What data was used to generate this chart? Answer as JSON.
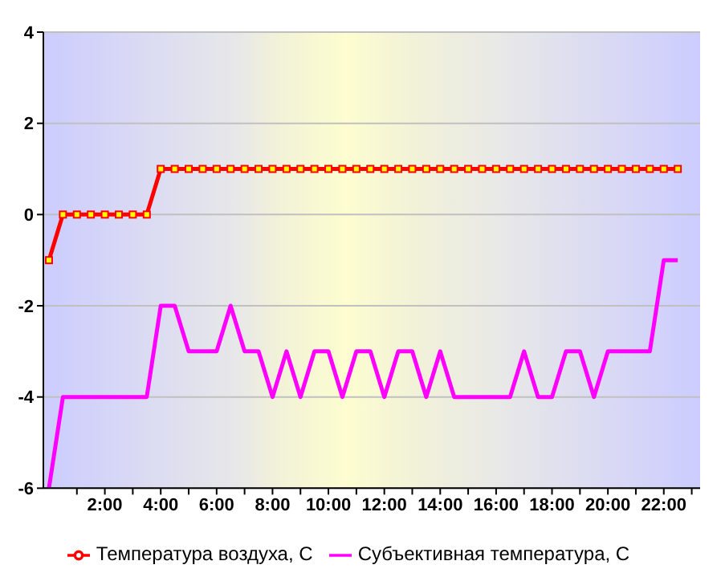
{
  "chart_data": {
    "type": "line",
    "x": [
      0,
      0.5,
      1,
      1.5,
      2,
      2.5,
      3,
      3.5,
      4,
      4.5,
      5,
      5.5,
      6,
      6.5,
      7,
      7.5,
      8,
      8.5,
      9,
      9.5,
      10,
      10.5,
      11,
      11.5,
      12,
      12.5,
      13,
      13.5,
      14,
      14.5,
      15,
      15.5,
      16,
      16.5,
      17,
      17.5,
      18,
      18.5,
      19,
      19.5,
      20,
      20.5,
      21,
      21.5,
      22,
      22.5
    ],
    "series": [
      {
        "name": "Температура воздуха, С",
        "color": "#ff0000",
        "marker": "square",
        "values": [
          -1,
          0,
          0,
          0,
          0,
          0,
          0,
          0,
          1,
          1,
          1,
          1,
          1,
          1,
          1,
          1,
          1,
          1,
          1,
          1,
          1,
          1,
          1,
          1,
          1,
          1,
          1,
          1,
          1,
          1,
          1,
          1,
          1,
          1,
          1,
          1,
          1,
          1,
          1,
          1,
          1,
          1,
          1,
          1,
          1,
          1
        ]
      },
      {
        "name": "Субъективная температура, С",
        "color": "#ff00ff",
        "marker": "none",
        "values": [
          -6,
          -4,
          -4,
          -4,
          -4,
          -4,
          -4,
          -4,
          -2,
          -2,
          -3,
          -3,
          -3,
          -2,
          -3,
          -3,
          -4,
          -3,
          -4,
          -3,
          -3,
          -4,
          -3,
          -3,
          -4,
          -3,
          -3,
          -4,
          -3,
          -4,
          -4,
          -4,
          -4,
          -4,
          -3,
          -4,
          -4,
          -3,
          -3,
          -4,
          -3,
          -3,
          -3,
          -3,
          -1,
          -1
        ]
      }
    ],
    "xlim": [
      -0.2,
      23.3
    ],
    "xticks": [
      {
        "value": 1,
        "label": null
      },
      {
        "value": 2,
        "label": "2:00"
      },
      {
        "value": 3,
        "label": null
      },
      {
        "value": 4,
        "label": "4:00"
      },
      {
        "value": 5,
        "label": null
      },
      {
        "value": 6,
        "label": "6:00"
      },
      {
        "value": 7,
        "label": null
      },
      {
        "value": 8,
        "label": "8:00"
      },
      {
        "value": 9,
        "label": null
      },
      {
        "value": 10,
        "label": "10:00"
      },
      {
        "value": 11,
        "label": null
      },
      {
        "value": 12,
        "label": "12:00"
      },
      {
        "value": 13,
        "label": null
      },
      {
        "value": 14,
        "label": "14:00"
      },
      {
        "value": 15,
        "label": null
      },
      {
        "value": 16,
        "label": "16:00"
      },
      {
        "value": 17,
        "label": null
      },
      {
        "value": 18,
        "label": "18:00"
      },
      {
        "value": 19,
        "label": null
      },
      {
        "value": 20,
        "label": "20:00"
      },
      {
        "value": 21,
        "label": null
      },
      {
        "value": 22,
        "label": "22:00"
      },
      {
        "value": 23,
        "label": null
      }
    ],
    "ylim": [
      -6,
      4
    ],
    "yticks": [
      -6,
      -4,
      -2,
      0,
      2,
      4
    ],
    "grid": "y",
    "legend": "bottom",
    "line_style": "solid"
  }
}
